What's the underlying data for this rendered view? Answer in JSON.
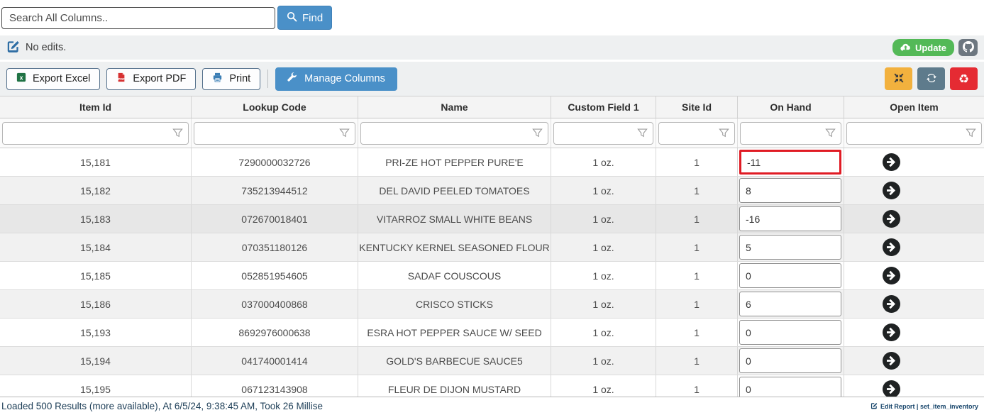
{
  "search_bar": {
    "placeholder": "Search All Columns..",
    "find_label": "Find"
  },
  "edit_bar": {
    "status_text": "No edits.",
    "update_label": "Update"
  },
  "toolbar": {
    "export_excel_label": "Export Excel",
    "export_pdf_label": "Export PDF",
    "print_label": "Print",
    "manage_columns_label": "Manage Columns"
  },
  "icons": {
    "find": "search-magnifier",
    "edit_status": "pencil-square",
    "update": "cloud-upload",
    "repo_button": "github-octocat",
    "export_excel": "excel-file",
    "export_pdf": "pdf-file",
    "print": "printer",
    "manage_columns": "wrench",
    "compress_button": "compress-arrows",
    "refresh_button": "sync-arrows",
    "recycle_button": "recycle",
    "recycle_glyph": "♻",
    "column_filter": "funnel",
    "open_item": "circle-right-arrow",
    "edit_report": "pencil-square"
  },
  "colors": {
    "accent_blue": "#4a90c8",
    "success_green": "#53b957",
    "warning_amber": "#f2b13e",
    "danger_red": "#e52b33",
    "slate_gray": "#5e7b8c",
    "alert_border_red": "#e01b24"
  },
  "table": {
    "columns": [
      "Item Id",
      "Lookup Code",
      "Name",
      "Custom Field 1",
      "Site Id",
      "On Hand",
      "Open Item"
    ],
    "hovered_row_index": 2,
    "rows": [
      {
        "item_id": "15,181",
        "lookup_code": "7290000032726",
        "name": "PRI-ZE HOT PEPPER PURE'E",
        "custom_field_1": "1 oz.",
        "site_id": "1",
        "on_hand": "-11",
        "on_hand_alert": true
      },
      {
        "item_id": "15,182",
        "lookup_code": "735213944512",
        "name": "DEL DAVID PEELED TOMATOES",
        "custom_field_1": "1 oz.",
        "site_id": "1",
        "on_hand": "8"
      },
      {
        "item_id": "15,183",
        "lookup_code": "072670018401",
        "name": "VITARROZ SMALL WHITE BEANS",
        "custom_field_1": "1 oz.",
        "site_id": "1",
        "on_hand": "-16"
      },
      {
        "item_id": "15,184",
        "lookup_code": "070351180126",
        "name": "KENTUCKY KERNEL SEASONED FLOUR",
        "custom_field_1": "1 oz.",
        "site_id": "1",
        "on_hand": "5"
      },
      {
        "item_id": "15,185",
        "lookup_code": "052851954605",
        "name": "SADAF COUSCOUS",
        "custom_field_1": "1 oz.",
        "site_id": "1",
        "on_hand": "0"
      },
      {
        "item_id": "15,186",
        "lookup_code": "037000400868",
        "name": "CRISCO STICKS",
        "custom_field_1": "1 oz.",
        "site_id": "1",
        "on_hand": "6"
      },
      {
        "item_id": "15,193",
        "lookup_code": "8692976000638",
        "name": "ESRA HOT PEPPER SAUCE W/ SEED",
        "custom_field_1": "1 oz.",
        "site_id": "1",
        "on_hand": "0"
      },
      {
        "item_id": "15,194",
        "lookup_code": "041740001414",
        "name": "GOLD'S BARBECUE SAUCE5",
        "custom_field_1": "1 oz.",
        "site_id": "1",
        "on_hand": "0"
      },
      {
        "item_id": "15,195",
        "lookup_code": "067123143908",
        "name": "FLEUR DE DIJON MUSTARD",
        "custom_field_1": "1 oz.",
        "site_id": "1",
        "on_hand": "0"
      }
    ]
  },
  "status_bar": {
    "text": "Loaded 500 Results (more available), At 6/5/24, 9:38:45 AM, Took 26 Millise",
    "edit_report_label": "Edit Report | set_item_inventory"
  }
}
